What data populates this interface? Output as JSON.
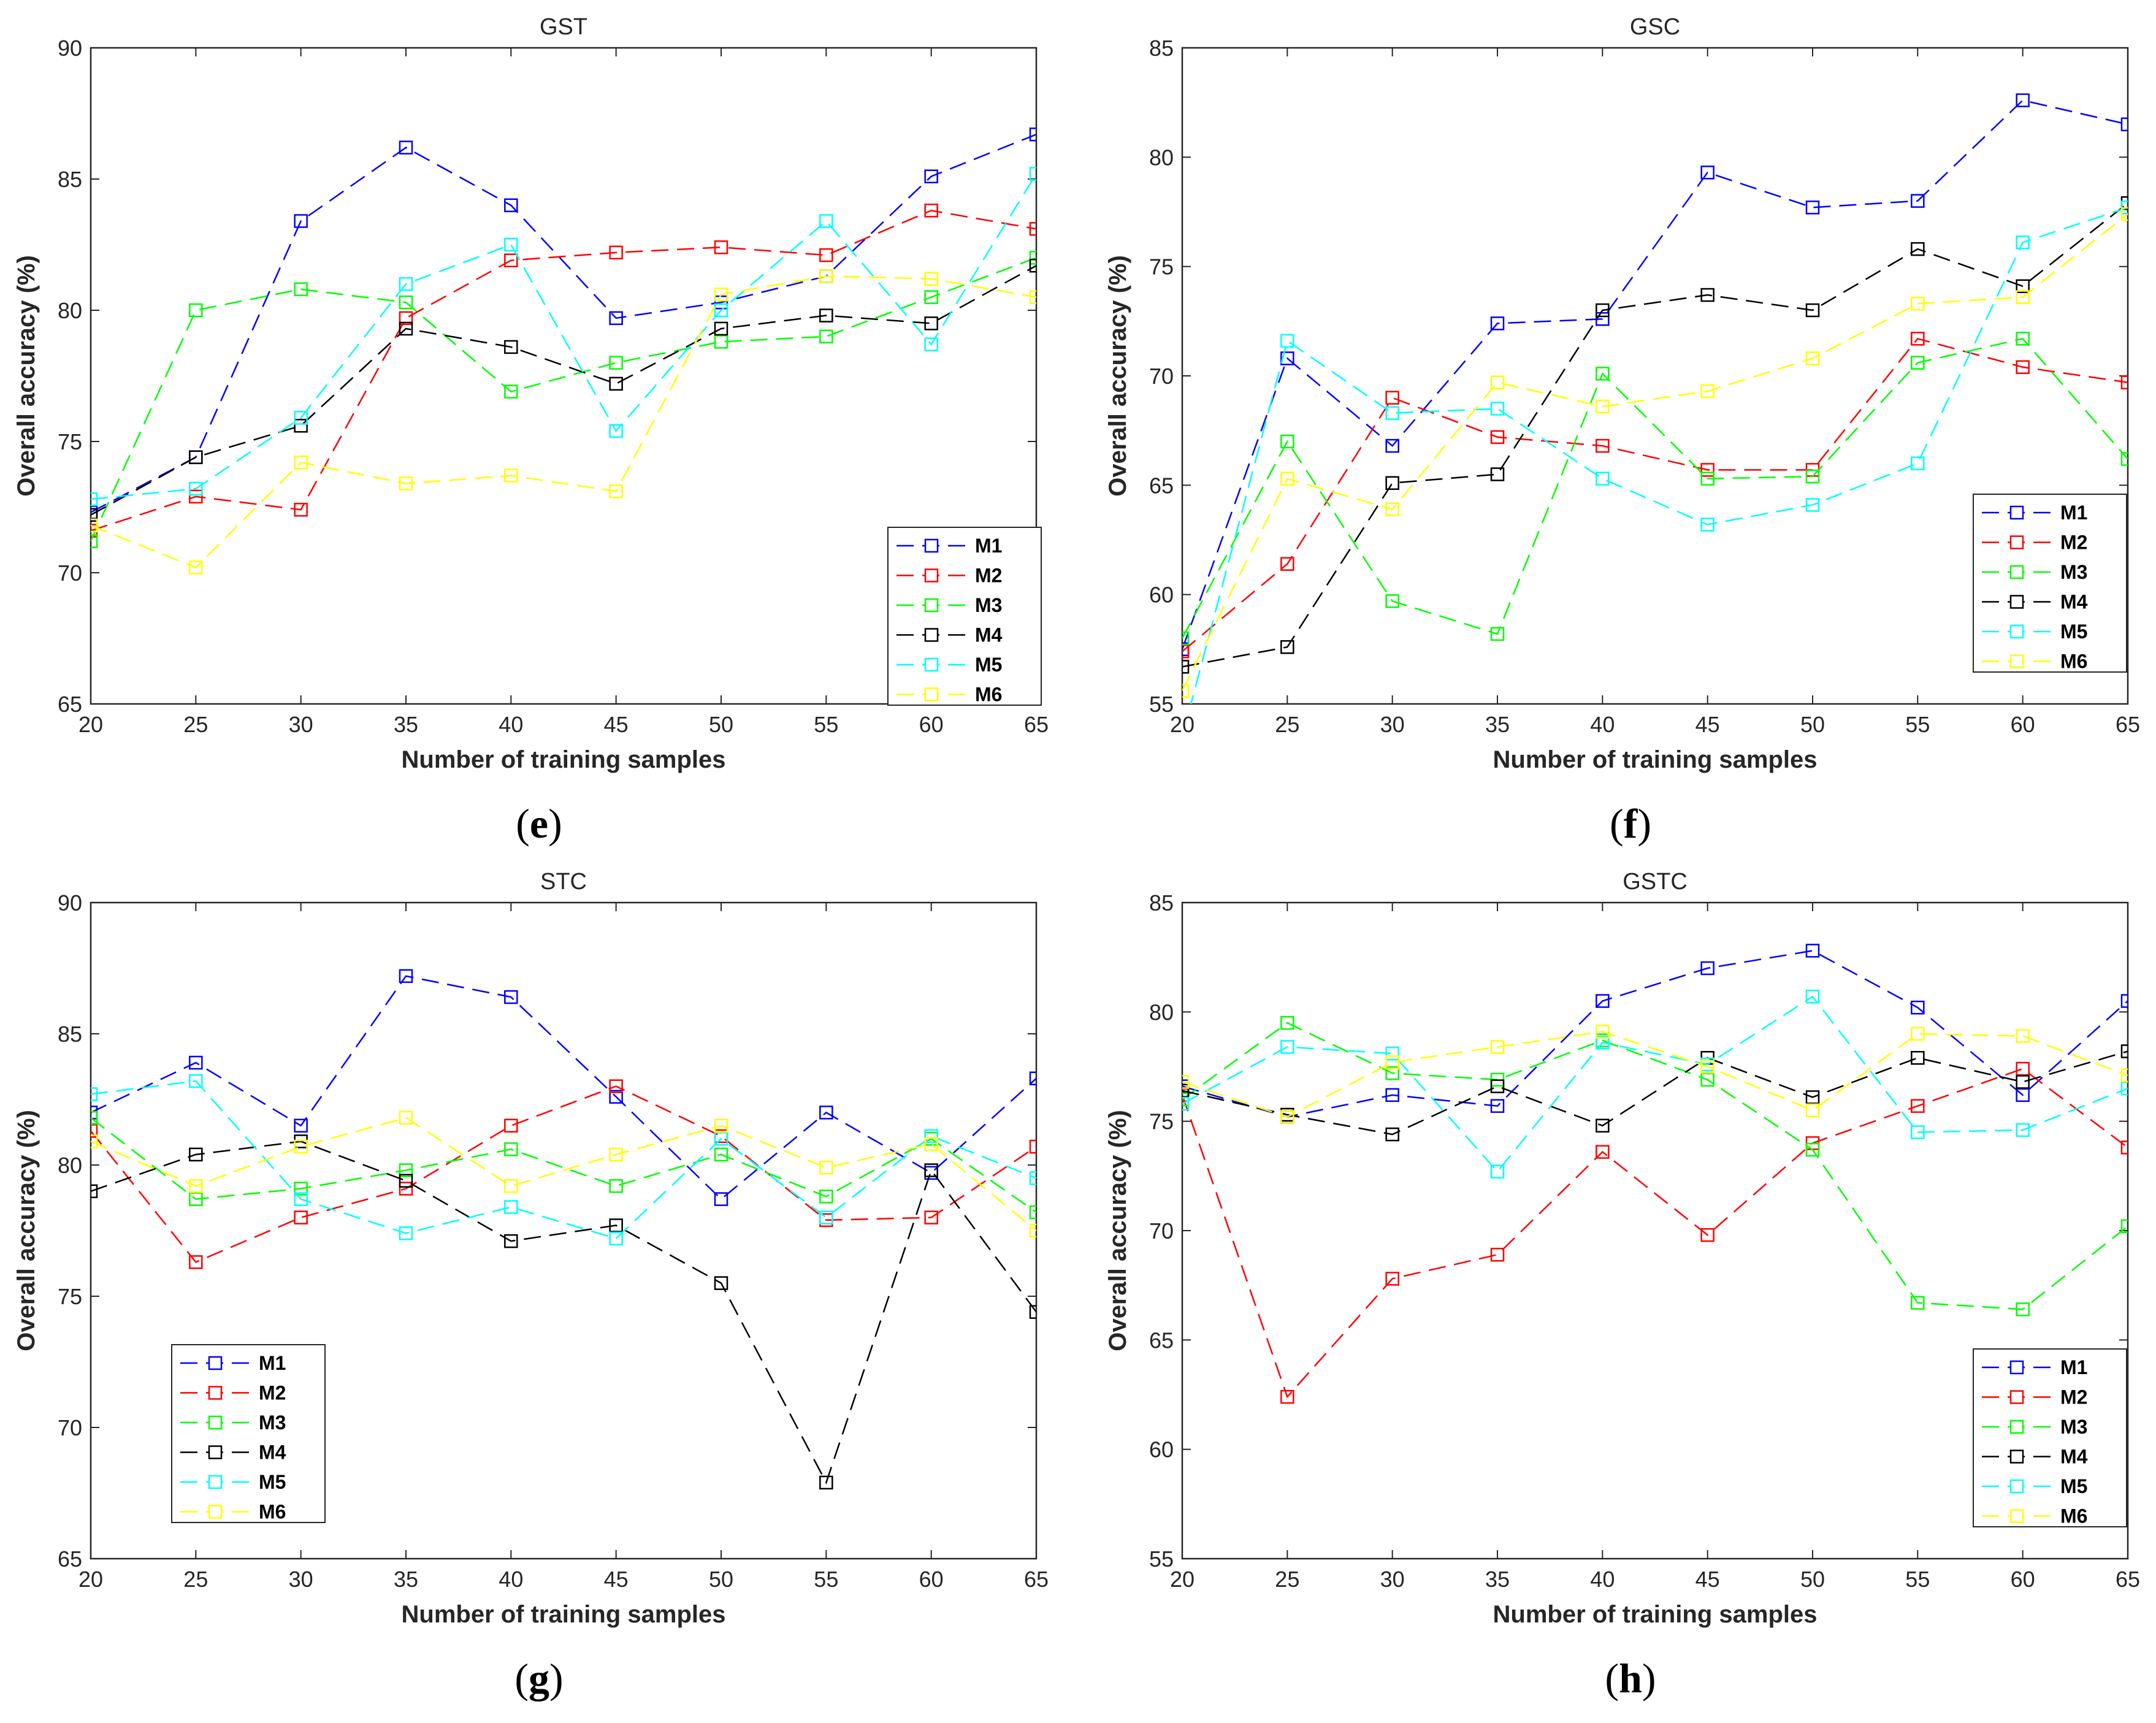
{
  "colors": {
    "M1": "#0000ff",
    "M2": "#ff0000",
    "M3": "#00ff00",
    "M4": "#000000",
    "M5": "#00ffff",
    "M6": "#ffff00"
  },
  "chart_data": [
    {
      "type": "line",
      "title": "GST",
      "caption": "e",
      "xlabel": "Number of training samples",
      "ylabel": "Overall accuracy (%)",
      "x": [
        20,
        25,
        30,
        35,
        40,
        45,
        50,
        55,
        60,
        65
      ],
      "xlim": [
        20,
        65
      ],
      "ylim": [
        65,
        90
      ],
      "yticks": [
        65,
        70,
        75,
        80,
        85,
        90
      ],
      "legend": "bottom-right",
      "series": [
        {
          "name": "M1",
          "values": [
            72.3,
            74.4,
            83.4,
            86.2,
            84.0,
            79.7,
            80.3,
            81.3,
            85.1,
            86.7
          ]
        },
        {
          "name": "M2",
          "values": [
            71.6,
            72.9,
            72.4,
            79.7,
            81.9,
            82.2,
            82.4,
            82.1,
            83.8,
            83.1
          ]
        },
        {
          "name": "M3",
          "values": [
            71.2,
            80.0,
            80.8,
            80.3,
            76.9,
            78.0,
            78.8,
            79.0,
            80.5,
            82.0
          ]
        },
        {
          "name": "M4",
          "values": [
            72.2,
            74.4,
            75.6,
            79.3,
            78.6,
            77.2,
            79.3,
            79.8,
            79.5,
            81.7
          ]
        },
        {
          "name": "M5",
          "values": [
            72.8,
            73.2,
            75.9,
            81.0,
            82.5,
            75.4,
            80.0,
            83.4,
            78.7,
            85.2
          ]
        },
        {
          "name": "M6",
          "values": [
            71.8,
            70.2,
            74.2,
            73.4,
            73.7,
            73.1,
            80.6,
            81.3,
            81.2,
            80.5
          ]
        }
      ]
    },
    {
      "type": "line",
      "title": "GSC",
      "caption": "f",
      "xlabel": "Number of training samples",
      "ylabel": "Overall accuracy (%)",
      "x": [
        20,
        25,
        30,
        35,
        40,
        45,
        50,
        55,
        60,
        65
      ],
      "xlim": [
        20,
        65
      ],
      "ylim": [
        55,
        85
      ],
      "yticks": [
        55,
        60,
        65,
        70,
        75,
        80,
        85
      ],
      "legend": "bottom-right",
      "series": [
        {
          "name": "M1",
          "values": [
            57.5,
            70.8,
            66.8,
            72.4,
            72.6,
            79.3,
            77.7,
            78.0,
            82.6,
            81.5
          ]
        },
        {
          "name": "M2",
          "values": [
            57.4,
            61.4,
            69.0,
            67.2,
            66.8,
            65.7,
            65.7,
            71.7,
            70.4,
            69.7
          ]
        },
        {
          "name": "M3",
          "values": [
            58.0,
            67.0,
            59.7,
            58.2,
            70.1,
            65.3,
            65.4,
            70.6,
            71.7,
            66.2
          ]
        },
        {
          "name": "M4",
          "values": [
            56.7,
            57.6,
            65.1,
            65.5,
            73.0,
            73.7,
            73.0,
            75.8,
            74.1,
            77.9
          ]
        },
        {
          "name": "M5",
          "values": [
            53.5,
            71.6,
            68.3,
            68.5,
            65.3,
            63.2,
            64.1,
            66.0,
            76.1,
            77.7
          ]
        },
        {
          "name": "M6",
          "values": [
            55.6,
            65.3,
            63.9,
            69.7,
            68.6,
            69.3,
            70.8,
            73.3,
            73.6,
            77.4
          ]
        }
      ]
    },
    {
      "type": "line",
      "title": "STC",
      "caption": "g",
      "xlabel": "Number of training samples",
      "ylabel": "Overall accuracy (%)",
      "x": [
        20,
        25,
        30,
        35,
        40,
        45,
        50,
        55,
        60,
        65
      ],
      "xlim": [
        20,
        65
      ],
      "ylim": [
        65,
        90
      ],
      "yticks": [
        65,
        70,
        75,
        80,
        85,
        90
      ],
      "legend": "bottom-left",
      "series": [
        {
          "name": "M1",
          "values": [
            82.0,
            83.9,
            81.5,
            87.2,
            86.4,
            82.6,
            78.7,
            82.0,
            79.7,
            83.3
          ]
        },
        {
          "name": "M2",
          "values": [
            81.3,
            76.3,
            78.0,
            79.1,
            81.5,
            83.0,
            81.1,
            77.9,
            78.0,
            80.7
          ]
        },
        {
          "name": "M3",
          "values": [
            81.8,
            78.7,
            79.1,
            79.8,
            80.6,
            79.2,
            80.4,
            78.8,
            81.0,
            78.2
          ]
        },
        {
          "name": "M4",
          "values": [
            79.0,
            80.4,
            80.9,
            79.4,
            77.1,
            77.7,
            75.5,
            67.9,
            79.8,
            74.4
          ]
        },
        {
          "name": "M5",
          "values": [
            82.7,
            83.2,
            78.7,
            77.4,
            78.4,
            77.2,
            81.0,
            78.0,
            81.1,
            79.5
          ]
        },
        {
          "name": "M6",
          "values": [
            80.9,
            79.2,
            80.7,
            81.8,
            79.2,
            80.4,
            81.5,
            79.9,
            80.8,
            77.5
          ]
        }
      ]
    },
    {
      "type": "line",
      "title": "GSTC",
      "caption": "h",
      "xlabel": "Number of training samples",
      "ylabel": "Overall accuracy (%)",
      "x": [
        20,
        25,
        30,
        35,
        40,
        45,
        50,
        55,
        60,
        65
      ],
      "xlim": [
        20,
        65
      ],
      "ylim": [
        55,
        85
      ],
      "yticks": [
        55,
        60,
        65,
        70,
        75,
        80,
        85
      ],
      "legend": "bottom-right",
      "series": [
        {
          "name": "M1",
          "values": [
            76.6,
            75.2,
            76.2,
            75.7,
            80.5,
            82.0,
            82.8,
            80.2,
            76.2,
            80.5
          ]
        },
        {
          "name": "M2",
          "values": [
            76.2,
            62.4,
            67.8,
            68.9,
            73.6,
            69.8,
            74.0,
            75.7,
            77.4,
            73.8
          ]
        },
        {
          "name": "M3",
          "values": [
            76.0,
            79.5,
            77.2,
            76.9,
            78.7,
            76.9,
            73.7,
            66.7,
            66.4,
            70.2
          ]
        },
        {
          "name": "M4",
          "values": [
            76.4,
            75.3,
            74.4,
            76.6,
            74.8,
            77.9,
            76.1,
            77.9,
            76.8,
            78.2
          ]
        },
        {
          "name": "M5",
          "values": [
            75.8,
            78.4,
            78.1,
            72.7,
            78.6,
            77.6,
            80.7,
            74.5,
            74.6,
            76.5
          ]
        },
        {
          "name": "M6",
          "values": [
            76.8,
            75.2,
            77.7,
            78.4,
            79.1,
            77.5,
            75.5,
            79.0,
            78.9,
            77.1
          ]
        }
      ]
    }
  ]
}
